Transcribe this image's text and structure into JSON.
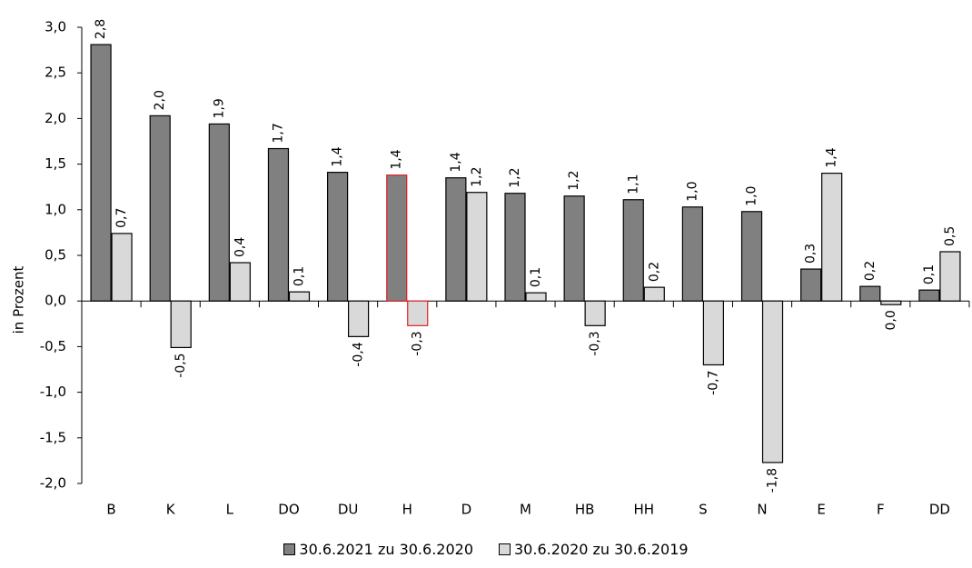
{
  "chart_data": {
    "type": "bar",
    "title": "",
    "xlabel": "",
    "ylabel": "in Prozent",
    "ylim": [
      -2.0,
      3.0
    ],
    "yticks": [
      "3,0",
      "2,5",
      "2,0",
      "1,5",
      "1,0",
      "0,5",
      "0,0",
      "-0,5",
      "-1,0",
      "-1,5",
      "-2,0"
    ],
    "ytick_values": [
      3.0,
      2.5,
      2.0,
      1.5,
      1.0,
      0.5,
      0.0,
      -0.5,
      -1.0,
      -1.5,
      -2.0
    ],
    "grid": false,
    "legend_position": "bottom",
    "categories": [
      "B",
      "K",
      "L",
      "DO",
      "DU",
      "H",
      "D",
      "M",
      "HB",
      "HH",
      "S",
      "N",
      "E",
      "F",
      "DD"
    ],
    "highlight_category": "H",
    "highlight_color": "#e02020",
    "series": [
      {
        "name": "30.6.2021 zu 30.6.2020",
        "color": "#808080",
        "values": [
          2.81,
          2.03,
          1.94,
          1.67,
          1.41,
          1.38,
          1.35,
          1.18,
          1.15,
          1.11,
          1.03,
          0.98,
          0.35,
          0.16,
          0.12
        ],
        "labels": [
          "2,8",
          "2,0",
          "1,9",
          "1,7",
          "1,4",
          "1,4",
          "1,4",
          "1,2",
          "1,2",
          "1,1",
          "1,0",
          "1,0",
          "0,3",
          "0,2",
          "0,1"
        ]
      },
      {
        "name": "30.6.2020 zu 30.6.2019",
        "color": "#d9d9d9",
        "values": [
          0.74,
          -0.51,
          0.42,
          0.1,
          -0.39,
          -0.27,
          1.19,
          0.09,
          -0.27,
          0.15,
          -0.7,
          -1.77,
          1.4,
          -0.04,
          0.54
        ],
        "labels": [
          "0,7",
          "-0,5",
          "0,4",
          "0,1",
          "-0,4",
          "-0,3",
          "1,2",
          "0,1",
          "-0,3",
          "0,2",
          "-0,7",
          "-1,8",
          "1,4",
          "0,0",
          "0,5"
        ]
      }
    ]
  }
}
